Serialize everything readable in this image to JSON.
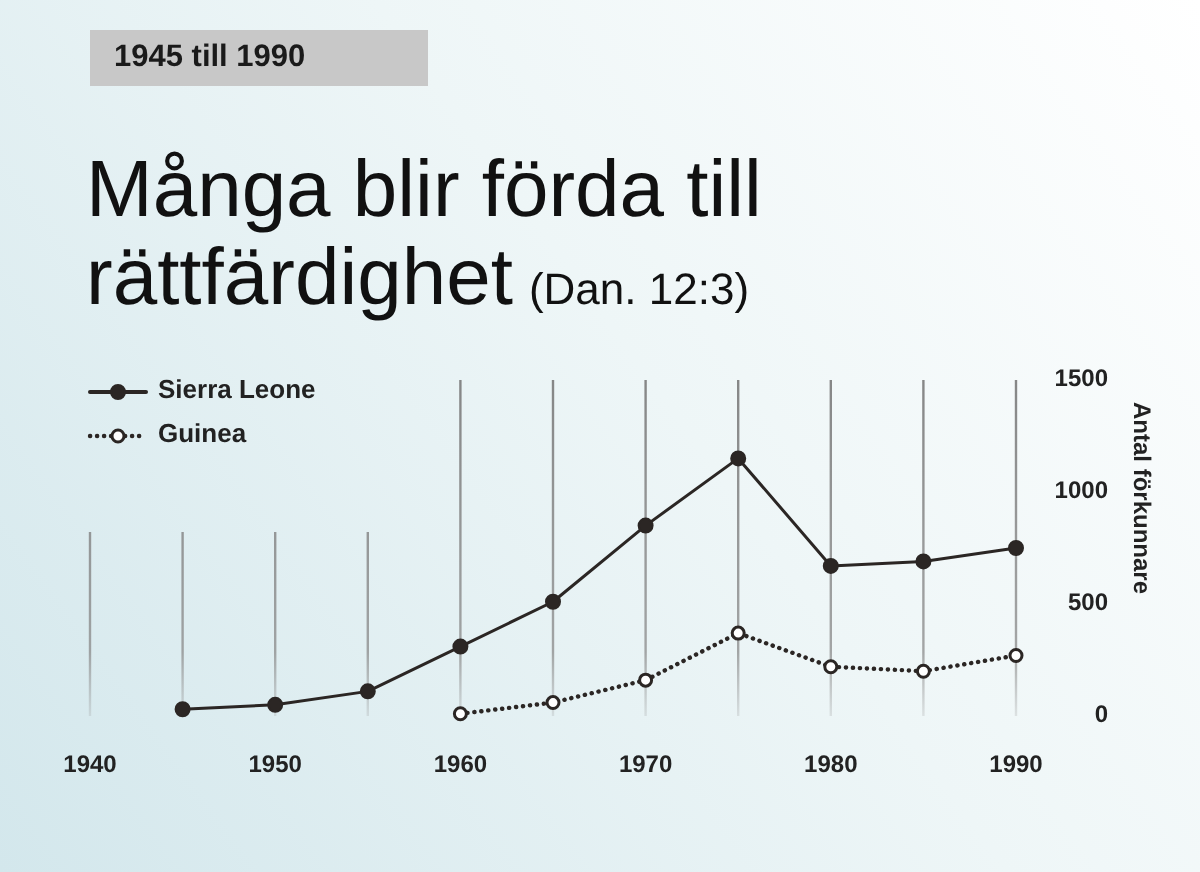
{
  "chart_data": {
    "type": "line",
    "subtitle": "1945 till 1990",
    "title": "Många blir förda till rättfärdighet (Dan. 12:3)",
    "ylabel": "Antal förkunnare",
    "x": [
      1945,
      1950,
      1955,
      1960,
      1965,
      1970,
      1975,
      1980,
      1985,
      1990
    ],
    "series": [
      {
        "name": "Sierra Leone",
        "color": "#2b2624",
        "line_style": "solid",
        "values": [
          30,
          50,
          110,
          310,
          510,
          850,
          1150,
          670,
          690,
          750
        ]
      },
      {
        "name": "Guinea",
        "color": "#2b2624",
        "line_style": "dotted",
        "values": [
          null,
          null,
          null,
          10,
          60,
          160,
          370,
          220,
          200,
          270
        ]
      }
    ],
    "xlim": [
      1940,
      1990
    ],
    "xticks": [
      1940,
      {
        "value": 1945,
        "label": null
      },
      1950,
      {
        "value": 1955,
        "label": null
      },
      1960,
      {
        "value": 1965,
        "label": null
      },
      1970,
      {
        "value": 1975,
        "label": null
      },
      1980,
      {
        "value": 1985,
        "label": null
      },
      1990
    ],
    "ylim": [
      0,
      1500
    ],
    "yticks": [
      0,
      500,
      1000,
      1500
    ],
    "grid": "x",
    "legend": "top left",
    "marker": "circle"
  }
}
